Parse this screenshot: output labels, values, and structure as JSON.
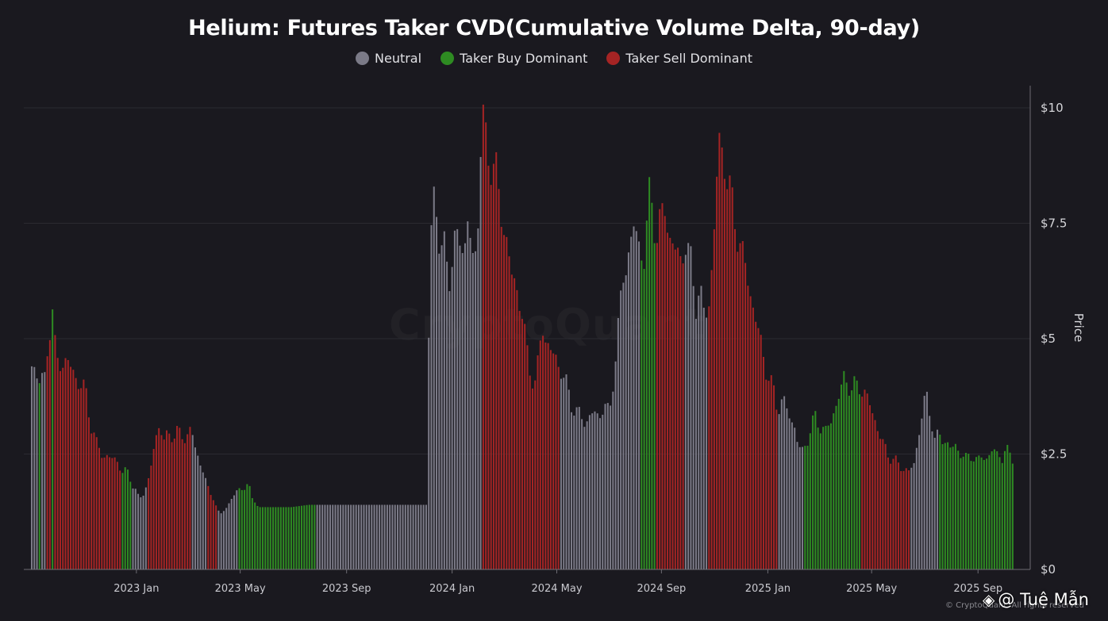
{
  "chart_data": {
    "type": "bar",
    "title": "Helium: Futures Taker CVD(Cumulative Volume Delta, 90-day)",
    "legend": [
      {
        "key": "N",
        "label": "Neutral",
        "color": "#7b7a87"
      },
      {
        "key": "B",
        "label": "Taker Buy Dominant",
        "color": "#2e8b22"
      },
      {
        "key": "S",
        "label": "Taker Sell Dominant",
        "color": "#a52424"
      }
    ],
    "xlabel": "",
    "ylabel": "Price",
    "ylim": [
      0,
      10
    ],
    "y_ticks": [
      "$0",
      "$2.5",
      "$5",
      "$7.5",
      "$10"
    ],
    "y_tick_values": [
      0,
      2.5,
      5,
      7.5,
      10
    ],
    "x_ticks": [
      "2023 Jan",
      "2023 May",
      "2023 Sep",
      "2024 Jan",
      "2024 May",
      "2024 Sep",
      "2025 Jan",
      "2025 May",
      "2025 Sep"
    ],
    "x_tick_days": [
      121,
      241,
      364,
      486,
      607,
      728,
      851,
      971,
      1094
    ],
    "x_range_days": [
      0,
      1136
    ],
    "price_anchors": [
      [
        0,
        4.4
      ],
      [
        4,
        4.4
      ],
      [
        8,
        4.1
      ],
      [
        15,
        4.1
      ],
      [
        20,
        5.2
      ],
      [
        24,
        5.6
      ],
      [
        28,
        4.5
      ],
      [
        40,
        4.5
      ],
      [
        48,
        4.3
      ],
      [
        55,
        4.0
      ],
      [
        62,
        3.9
      ],
      [
        68,
        3.2
      ],
      [
        75,
        2.7
      ],
      [
        82,
        2.5
      ],
      [
        90,
        2.4
      ],
      [
        98,
        2.4
      ],
      [
        105,
        2.1
      ],
      [
        112,
        2.1
      ],
      [
        118,
        1.8
      ],
      [
        124,
        1.5
      ],
      [
        130,
        1.7
      ],
      [
        136,
        2.0
      ],
      [
        142,
        2.7
      ],
      [
        148,
        3.2
      ],
      [
        153,
        2.8
      ],
      [
        160,
        2.9
      ],
      [
        168,
        3.0
      ],
      [
        176,
        2.8
      ],
      [
        184,
        3.1
      ],
      [
        190,
        2.5
      ],
      [
        198,
        2.2
      ],
      [
        204,
        1.7
      ],
      [
        210,
        1.5
      ],
      [
        218,
        1.2
      ],
      [
        224,
        1.3
      ],
      [
        230,
        1.5
      ],
      [
        238,
        1.7
      ],
      [
        244,
        1.8
      ],
      [
        250,
        1.8
      ],
      [
        256,
        1.5
      ],
      [
        262,
        1.35
      ],
      [
        270,
        1.35
      ],
      [
        280,
        1.35
      ],
      [
        300,
        1.35
      ],
      [
        320,
        1.4
      ],
      [
        330,
        1.4
      ],
      [
        345,
        1.4
      ],
      [
        370,
        1.4
      ],
      [
        400,
        1.4
      ],
      [
        430,
        1.4
      ],
      [
        457,
        1.4
      ],
      [
        459,
        5.0
      ],
      [
        462,
        7.5
      ],
      [
        466,
        8.6
      ],
      [
        470,
        7.0
      ],
      [
        474,
        6.8
      ],
      [
        478,
        7.1
      ],
      [
        484,
        6.3
      ],
      [
        488,
        6.8
      ],
      [
        492,
        7.2
      ],
      [
        496,
        7.4
      ],
      [
        500,
        6.8
      ],
      [
        505,
        7.5
      ],
      [
        508,
        7.0
      ],
      [
        512,
        6.7
      ],
      [
        516,
        7.6
      ],
      [
        518,
        8.2
      ],
      [
        520,
        9.9
      ],
      [
        526,
        9.2
      ],
      [
        532,
        8.8
      ],
      [
        537,
        8.5
      ],
      [
        542,
        7.9
      ],
      [
        548,
        7.2
      ],
      [
        554,
        6.4
      ],
      [
        560,
        6.2
      ],
      [
        566,
        5.6
      ],
      [
        572,
        4.8
      ],
      [
        578,
        4.2
      ],
      [
        582,
        4.0
      ],
      [
        586,
        4.5
      ],
      [
        590,
        5.4
      ],
      [
        595,
        4.9
      ],
      [
        600,
        4.7
      ],
      [
        606,
        4.6
      ],
      [
        612,
        4.3
      ],
      [
        618,
        4.0
      ],
      [
        624,
        3.6
      ],
      [
        630,
        3.4
      ],
      [
        640,
        3.2
      ],
      [
        650,
        3.4
      ],
      [
        656,
        3.3
      ],
      [
        662,
        3.6
      ],
      [
        668,
        3.3
      ],
      [
        674,
        4.5
      ],
      [
        680,
        5.6
      ],
      [
        684,
        6.3
      ],
      [
        690,
        6.9
      ],
      [
        696,
        7.4
      ],
      [
        702,
        7.0
      ],
      [
        708,
        6.8
      ],
      [
        714,
        8.0
      ],
      [
        718,
        7.9
      ],
      [
        722,
        7.2
      ],
      [
        728,
        7.6
      ],
      [
        732,
        7.8
      ],
      [
        738,
        7.2
      ],
      [
        744,
        6.9
      ],
      [
        750,
        6.7
      ],
      [
        756,
        7.1
      ],
      [
        762,
        6.6
      ],
      [
        768,
        5.8
      ],
      [
        772,
        6.1
      ],
      [
        778,
        5.4
      ],
      [
        784,
        5.9
      ],
      [
        790,
        7.7
      ],
      [
        794,
        9.2
      ],
      [
        800,
        9.0
      ],
      [
        806,
        8.3
      ],
      [
        812,
        7.6
      ],
      [
        818,
        7.2
      ],
      [
        824,
        6.6
      ],
      [
        830,
        6.1
      ],
      [
        836,
        5.5
      ],
      [
        842,
        5.0
      ],
      [
        848,
        4.4
      ],
      [
        852,
        4.2
      ],
      [
        858,
        3.8
      ],
      [
        862,
        3.5
      ],
      [
        868,
        3.7
      ],
      [
        874,
        3.4
      ],
      [
        882,
        3.1
      ],
      [
        886,
        2.7
      ],
      [
        890,
        2.5
      ],
      [
        894,
        2.7
      ],
      [
        900,
        3.0
      ],
      [
        906,
        3.3
      ],
      [
        912,
        3.1
      ],
      [
        918,
        3.0
      ],
      [
        924,
        3.2
      ],
      [
        930,
        3.6
      ],
      [
        936,
        3.9
      ],
      [
        940,
        4.2
      ],
      [
        948,
        3.9
      ],
      [
        956,
        4.0
      ],
      [
        964,
        3.8
      ],
      [
        970,
        3.5
      ],
      [
        976,
        3.2
      ],
      [
        982,
        2.8
      ],
      [
        990,
        2.5
      ],
      [
        1000,
        2.3
      ],
      [
        1008,
        2.2
      ],
      [
        1014,
        2.1
      ],
      [
        1020,
        2.3
      ],
      [
        1026,
        3.0
      ],
      [
        1030,
        3.4
      ],
      [
        1034,
        3.8
      ],
      [
        1040,
        3.3
      ],
      [
        1044,
        2.8
      ],
      [
        1050,
        2.9
      ],
      [
        1056,
        2.8
      ],
      [
        1062,
        2.6
      ],
      [
        1068,
        2.7
      ],
      [
        1074,
        2.5
      ],
      [
        1080,
        2.4
      ],
      [
        1088,
        2.5
      ],
      [
        1094,
        2.3
      ],
      [
        1100,
        2.5
      ],
      [
        1106,
        2.4
      ],
      [
        1112,
        2.6
      ],
      [
        1118,
        2.5
      ],
      [
        1122,
        2.4
      ],
      [
        1126,
        2.6
      ],
      [
        1130,
        2.5
      ],
      [
        1136,
        2.4
      ]
    ],
    "category_segments": [
      [
        0,
        8,
        "N"
      ],
      [
        8,
        12,
        "B"
      ],
      [
        12,
        16,
        "N"
      ],
      [
        16,
        22,
        "S"
      ],
      [
        22,
        26,
        "B"
      ],
      [
        26,
        104,
        "S"
      ],
      [
        104,
        116,
        "B"
      ],
      [
        116,
        134,
        "N"
      ],
      [
        134,
        184,
        "S"
      ],
      [
        184,
        204,
        "N"
      ],
      [
        204,
        214,
        "S"
      ],
      [
        214,
        240,
        "N"
      ],
      [
        240,
        330,
        "B"
      ],
      [
        330,
        458,
        "N"
      ],
      [
        458,
        520,
        "N"
      ],
      [
        520,
        586,
        "S"
      ],
      [
        586,
        590,
        "S"
      ],
      [
        590,
        596,
        "S"
      ],
      [
        596,
        610,
        "S"
      ],
      [
        610,
        624,
        "N"
      ],
      [
        624,
        690,
        "N"
      ],
      [
        690,
        704,
        "N"
      ],
      [
        704,
        722,
        "B"
      ],
      [
        722,
        736,
        "S"
      ],
      [
        736,
        756,
        "S"
      ],
      [
        756,
        764,
        "N"
      ],
      [
        764,
        782,
        "N"
      ],
      [
        782,
        836,
        "S"
      ],
      [
        836,
        862,
        "S"
      ],
      [
        862,
        892,
        "N"
      ],
      [
        892,
        958,
        "B"
      ],
      [
        958,
        1016,
        "S"
      ],
      [
        1016,
        1030,
        "N"
      ],
      [
        1030,
        1050,
        "N"
      ],
      [
        1050,
        1136,
        "B"
      ]
    ]
  },
  "watermark_text": "CryptoQuant",
  "copyright_text": "© CryptoQuant. All rights reserved",
  "author": {
    "icon": "binance-icon",
    "text": "@ Tuệ Mẫn"
  }
}
